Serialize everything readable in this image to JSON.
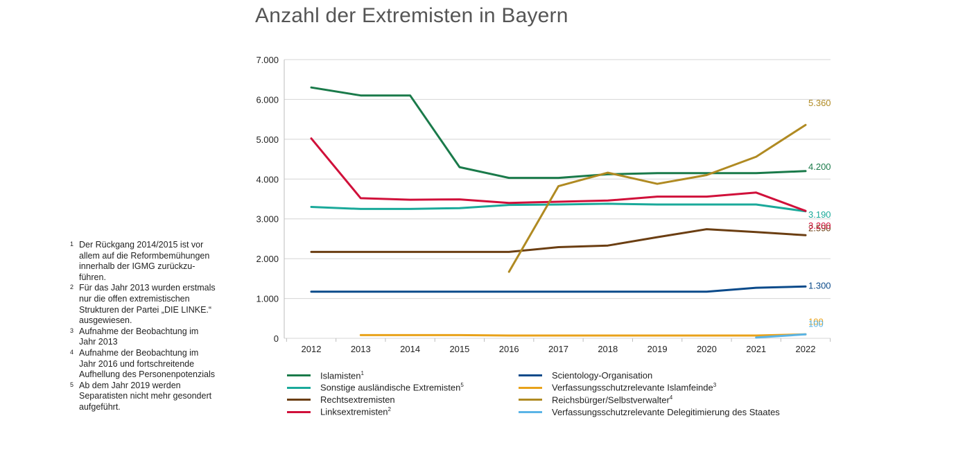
{
  "chart_data": {
    "type": "line",
    "title": "Anzahl der Extremisten in Bayern",
    "xlabel": "",
    "ylabel": "",
    "categories": [
      "2012",
      "2013",
      "2014",
      "2015",
      "2016",
      "2017",
      "2018",
      "2019",
      "2020",
      "2021",
      "2022"
    ],
    "ylim": [
      0,
      7000
    ],
    "y_ticks": [
      0,
      1000,
      2000,
      3000,
      4000,
      5000,
      6000,
      7000
    ],
    "y_tick_labels": [
      "0",
      "1.000",
      "2.000",
      "3.000",
      "4.000",
      "5.000",
      "6.000",
      "7.000"
    ],
    "grid": "horizontal",
    "legend_position": "bottom",
    "series": [
      {
        "name": "Islamisten",
        "note": "1",
        "color": "#1a7a4a",
        "values": [
          6300,
          6100,
          6100,
          4300,
          4030,
          4030,
          4120,
          4150,
          4150,
          4150,
          4200
        ],
        "end_label": "4.200"
      },
      {
        "name": "Sonstige ausländische Extremisten",
        "note": "5",
        "color": "#1aa99a",
        "values": [
          3300,
          3250,
          3250,
          3270,
          3350,
          3360,
          3380,
          3360,
          3360,
          3360,
          3190
        ],
        "end_label": "3.190"
      },
      {
        "name": "Rechtsextremisten",
        "note": "",
        "color": "#6b3e12",
        "values": [
          2170,
          2170,
          2170,
          2170,
          2170,
          2290,
          2330,
          2540,
          2740,
          2670,
          2590
        ],
        "end_label": "2.590"
      },
      {
        "name": "Linksextremisten",
        "note": "2",
        "color": "#d0103a",
        "values": [
          5020,
          3520,
          3480,
          3490,
          3400,
          3430,
          3460,
          3560,
          3560,
          3660,
          3200
        ],
        "end_label": "3.200"
      },
      {
        "name": "Scientology-Organisation",
        "note": "",
        "color": "#0a4a8a",
        "values": [
          1170,
          1170,
          1170,
          1170,
          1170,
          1170,
          1170,
          1170,
          1170,
          1270,
          1300
        ],
        "end_label": "1.300"
      },
      {
        "name": "Verfassungsschutzrelevante Islamfeinde",
        "note": "3",
        "color": "#e8a21a",
        "values": [
          null,
          80,
          80,
          80,
          70,
          70,
          70,
          70,
          70,
          70,
          100
        ],
        "end_label": "100"
      },
      {
        "name": "Reichsbürger/Selbstverwalter",
        "note": "4",
        "color": "#b08a22",
        "values": [
          null,
          null,
          null,
          null,
          1670,
          3820,
          4160,
          3880,
          4100,
          4560,
          5360
        ],
        "end_label": "5.360"
      },
      {
        "name": "Verfassungsschutzrelevante Delegitimierung des Staates",
        "note": "",
        "color": "#5ab4e6",
        "values": [
          null,
          null,
          null,
          null,
          null,
          null,
          null,
          null,
          null,
          20,
          100
        ],
        "end_label": "100"
      }
    ]
  },
  "footnotes": [
    {
      "mark": "1",
      "text": "Der Rückgang 2014/2015 ist vor\nallem auf die Reformbemühungen\ninnerhalb der IGMG zurückzu-\nführen."
    },
    {
      "mark": "2",
      "text": "Für das Jahr 2013 wurden erstmals\nnur die offen extremistischen\nStrukturen der Partei „DIE LINKE.“\nausgewiesen."
    },
    {
      "mark": "3",
      "text": "Aufnahme der Beobachtung im\nJahr 2013"
    },
    {
      "mark": "4",
      "text": "Aufnahme der Beobachtung im\nJahr 2016 und fortschreitende\nAufhellung des  Personenpotenzials"
    },
    {
      "mark": "5",
      "text": "Ab dem Jahr 2019 werden\nSeparatisten nicht mehr gesondert\naufgeführt."
    }
  ]
}
